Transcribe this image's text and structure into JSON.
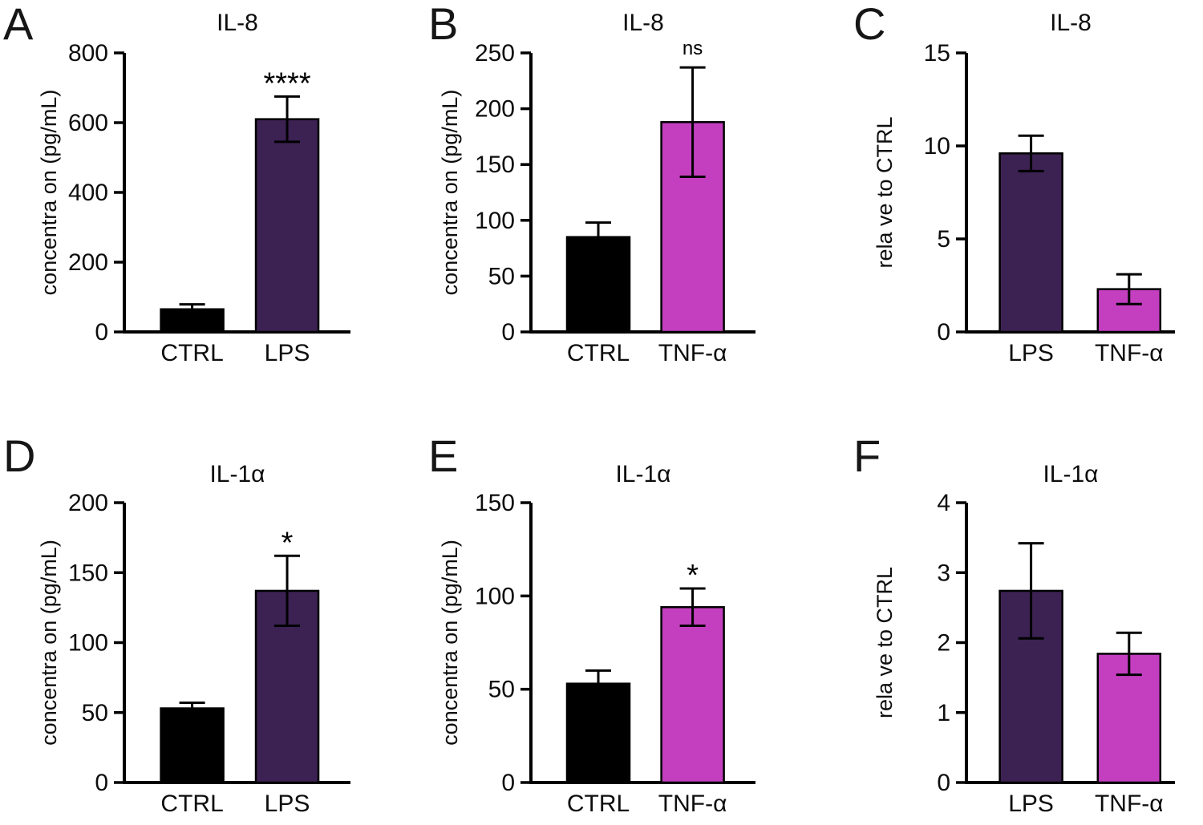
{
  "figure": {
    "background": "#ffffff",
    "axis_color": "#000000"
  },
  "colors": {
    "ctrl": "#000000",
    "lps": "#3c2153",
    "tnf": "#c43fc0"
  },
  "chart_data": [
    {
      "panel": "A",
      "type": "bar",
      "title": "IL-8",
      "ylabel": "concentra on (pg/mL)",
      "ylim": [
        0,
        800
      ],
      "yticks": [
        0,
        200,
        400,
        600,
        800
      ],
      "categories": [
        "CTRL",
        "LPS"
      ],
      "values": [
        65,
        610
      ],
      "errors": [
        14,
        65
      ],
      "significance": [
        "",
        "****"
      ],
      "bar_colors": [
        "#000000",
        "#3c2153"
      ]
    },
    {
      "panel": "B",
      "type": "bar",
      "title": "IL-8",
      "ylabel": "concentra on (pg/mL)",
      "ylim": [
        0,
        250
      ],
      "yticks": [
        0,
        50,
        100,
        150,
        200,
        250
      ],
      "categories": [
        "CTRL",
        "TNF-α"
      ],
      "values": [
        85,
        188
      ],
      "errors": [
        13,
        49
      ],
      "significance": [
        "",
        "ns"
      ],
      "bar_colors": [
        "#000000",
        "#c43fc0"
      ]
    },
    {
      "panel": "C",
      "type": "bar",
      "title": "IL-8",
      "ylabel": "rela ve to CTRL",
      "ylim": [
        0,
        15
      ],
      "yticks": [
        0,
        5,
        10,
        15
      ],
      "categories": [
        "LPS",
        "TNF-α"
      ],
      "values": [
        9.6,
        2.3
      ],
      "errors": [
        0.95,
        0.8
      ],
      "significance": [
        "",
        ""
      ],
      "bar_colors": [
        "#3c2153",
        "#c43fc0"
      ]
    },
    {
      "panel": "D",
      "type": "bar",
      "title": "IL-1α",
      "ylabel": "concentra on (pg/mL)",
      "ylim": [
        0,
        200
      ],
      "yticks": [
        0,
        50,
        100,
        150,
        200
      ],
      "categories": [
        "CTRL",
        "LPS"
      ],
      "values": [
        53,
        137
      ],
      "errors": [
        4,
        25
      ],
      "significance": [
        "",
        "*"
      ],
      "bar_colors": [
        "#000000",
        "#3c2153"
      ]
    },
    {
      "panel": "E",
      "type": "bar",
      "title": "IL-1α",
      "ylabel": "concentra on (pg/mL)",
      "ylim": [
        0,
        150
      ],
      "yticks": [
        0,
        50,
        100,
        150
      ],
      "categories": [
        "CTRL",
        "TNF-α"
      ],
      "values": [
        53,
        94
      ],
      "errors": [
        7,
        10
      ],
      "significance": [
        "",
        "*"
      ],
      "bar_colors": [
        "#000000",
        "#c43fc0"
      ]
    },
    {
      "panel": "F",
      "type": "bar",
      "title": "IL-1α",
      "ylabel": "rela ve to CTRL",
      "ylim": [
        0,
        4
      ],
      "yticks": [
        0,
        1,
        2,
        3,
        4
      ],
      "categories": [
        "LPS",
        "TNF-α"
      ],
      "values": [
        2.74,
        1.84
      ],
      "errors": [
        0.68,
        0.3
      ],
      "significance": [
        "",
        ""
      ],
      "bar_colors": [
        "#3c2153",
        "#c43fc0"
      ]
    }
  ]
}
